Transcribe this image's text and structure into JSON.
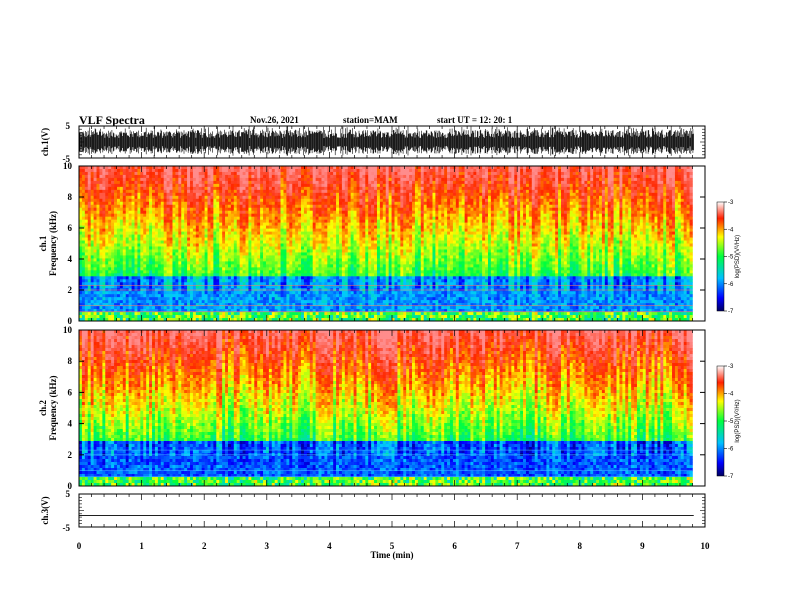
{
  "header": {
    "title": "VLF Spectra",
    "date": "Nov.26, 2021",
    "station": "station=MAM",
    "start": "start UT =  12: 20: 1"
  },
  "chart_data": [
    {
      "type": "line",
      "name": "ch1-waveform",
      "ylabel": "ch.1(V)",
      "xlim": [
        0,
        10
      ],
      "ylim": [
        -5,
        5
      ],
      "yticks": [
        "5",
        "-5"
      ],
      "description_values": "dense oscillating signal spanning roughly -4 to +4 V over 0-9.8 min"
    },
    {
      "type": "heatmap",
      "name": "ch1-spectrogram",
      "ylabel": "ch.1\nFrequency (kHz)",
      "xlim": [
        0,
        9.8
      ],
      "ylim": [
        0,
        10
      ],
      "yticks": [
        "0",
        "2",
        "4",
        "6",
        "8",
        "10"
      ],
      "colorbar": {
        "label": "log(PSD)(V²/Hz)",
        "range": [
          -7,
          -3
        ],
        "ticks": [
          "-3",
          "-4",
          "-5",
          "-6",
          "-7"
        ]
      }
    },
    {
      "type": "heatmap",
      "name": "ch2-spectrogram",
      "ylabel": "ch.2\nFrequency (kHz)",
      "xlim": [
        0,
        9.8
      ],
      "ylim": [
        0,
        10
      ],
      "yticks": [
        "0",
        "2",
        "4",
        "6",
        "8",
        "10"
      ],
      "colorbar": {
        "label": "log(PSD)(V²/Hz)",
        "range": [
          -7,
          -3
        ],
        "ticks": [
          "-3",
          "-4",
          "-5",
          "-6",
          "-7"
        ]
      }
    },
    {
      "type": "line",
      "name": "ch3-waveform",
      "ylabel": "ch.3(V)",
      "xlim": [
        0,
        10
      ],
      "ylim": [
        -5,
        5
      ],
      "yticks": [
        "5",
        "-5"
      ],
      "values_constant": -1.5
    }
  ],
  "xaxis": {
    "label": "Time (min)",
    "ticks": [
      "0",
      "1",
      "2",
      "3",
      "4",
      "5",
      "6",
      "7",
      "8",
      "9",
      "10"
    ]
  }
}
